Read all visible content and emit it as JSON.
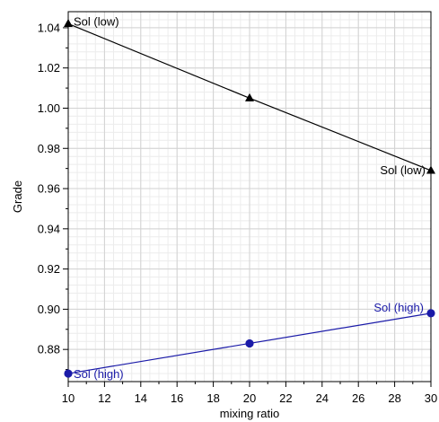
{
  "chart_data": {
    "type": "line",
    "title": "",
    "xlabel": "mixing ratio",
    "ylabel": "Grade",
    "xlim": [
      10,
      30
    ],
    "ylim": [
      0.864,
      1.048
    ],
    "x_ticks": [
      "10",
      "12",
      "14",
      "16",
      "18",
      "20",
      "22",
      "24",
      "26",
      "28",
      "30"
    ],
    "y_ticks": [
      "0.88",
      "0.90",
      "0.92",
      "0.94",
      "0.96",
      "0.98",
      "1.00",
      "1.02",
      "1.04"
    ],
    "grid": true,
    "series": [
      {
        "name": "Sol (low)",
        "color": "#000000",
        "marker": "triangle",
        "x": [
          10,
          20,
          30
        ],
        "y": [
          1.042,
          1.005,
          0.969
        ],
        "labels": [
          {
            "text": "Sol (low)",
            "at_index": 0
          },
          {
            "text": "Sol (low)",
            "at_index": 2
          }
        ]
      },
      {
        "name": "Sol (high)",
        "color": "#1a1aa8",
        "marker": "circle",
        "x": [
          10,
          20,
          30
        ],
        "y": [
          0.868,
          0.883,
          0.898
        ],
        "labels": [
          {
            "text": "Sol (high)",
            "at_index": 0
          },
          {
            "text": "Sol (high)",
            "at_index": 2
          }
        ]
      }
    ]
  }
}
